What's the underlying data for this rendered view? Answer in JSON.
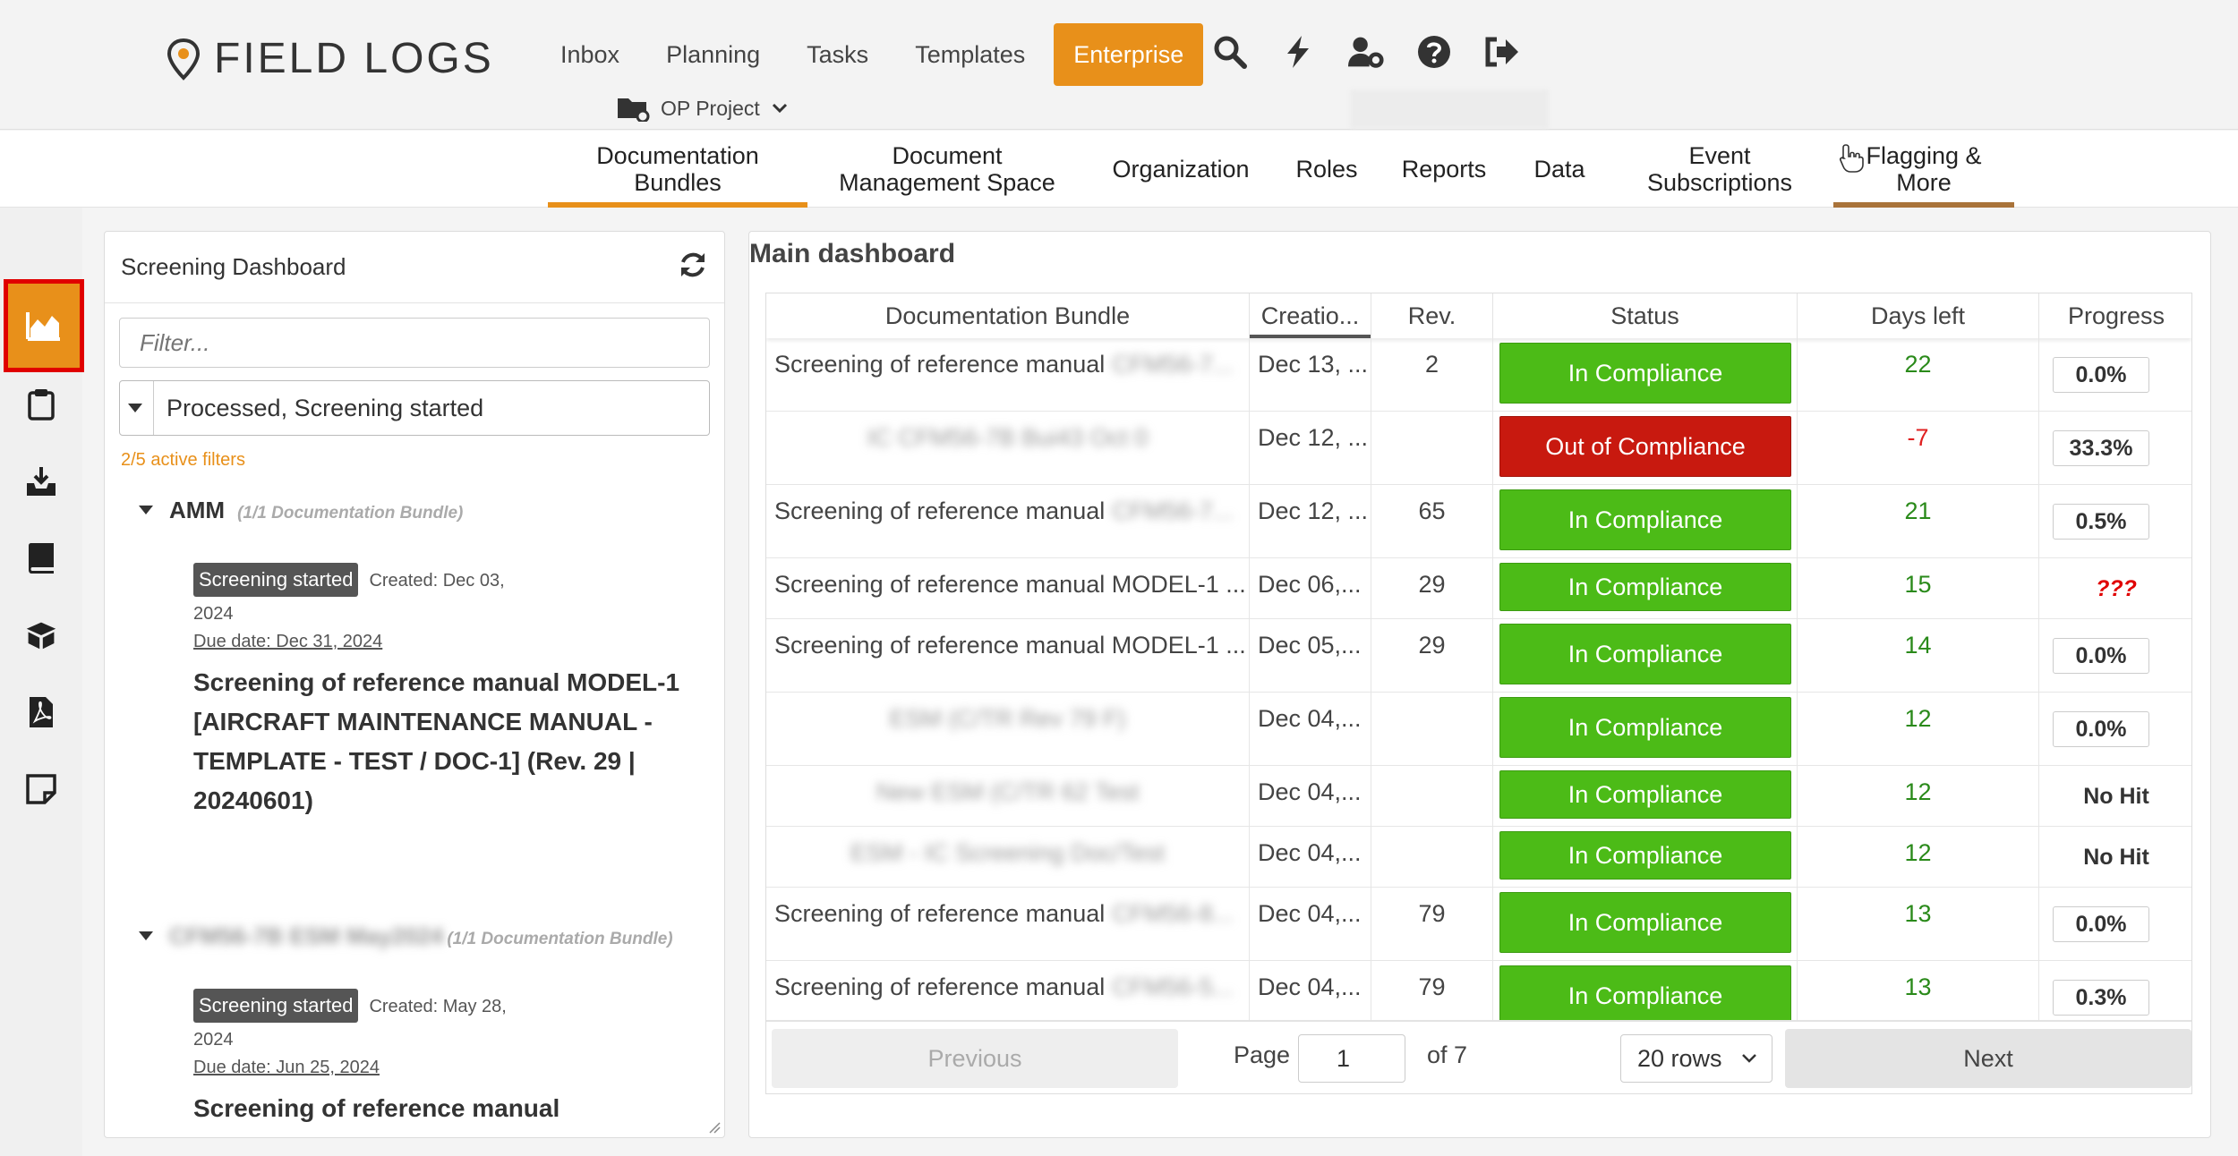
{
  "brand": {
    "name": "FIELD LOGS"
  },
  "topnav": {
    "items": [
      "Inbox",
      "Planning",
      "Tasks",
      "Templates"
    ],
    "active": "Enterprise"
  },
  "topicons": [
    "search-icon",
    "bolt-icon",
    "user-cog-icon",
    "help-icon",
    "logout-icon"
  ],
  "project": {
    "label": "OP Project"
  },
  "subnav": {
    "tabs": [
      {
        "label": "Documentation\nBundles"
      },
      {
        "label": "Document\nManagement Space"
      },
      {
        "label": "Organization"
      },
      {
        "label": "Roles"
      },
      {
        "label": "Reports"
      },
      {
        "label": "Data"
      },
      {
        "label": "Event\nSubscriptions"
      },
      {
        "label": "Flagging &\nMore"
      }
    ]
  },
  "rail": [
    "dashboard-chart-icon",
    "clipboard-icon",
    "inbox-download-icon",
    "book-icon",
    "box-icon",
    "pdf-icon",
    "sticky-note-icon"
  ],
  "left_panel": {
    "title": "Screening Dashboard",
    "filter_placeholder": "Filter...",
    "status_filter": "Processed, Screening started",
    "active_filters": "2/5 active filters",
    "groups": [
      {
        "name": "AMM",
        "count": "(1/1 Documentation Bundle)",
        "card": {
          "badge": "Screening started",
          "created": "Created: Dec 03,",
          "year": "2024",
          "due": "Due date: Dec 31, 2024",
          "title": "Screening of reference manual MODEL-1 [AIRCRAFT MAINTENANCE MANUAL - TEMPLATE - TEST / DOC-1] (Rev. 29 | 20240601)"
        }
      },
      {
        "name": "CFM56-7B ESM May2024",
        "count": "(1/1 Documentation Bundle)",
        "card": {
          "badge": "Screening started",
          "created": "Created: May 28,",
          "year": "2024",
          "due": "Due date: Jun 25, 2024",
          "title": "Screening of reference manual"
        }
      }
    ]
  },
  "main": {
    "title": "Main dashboard",
    "columns": [
      "Documentation Bundle",
      "Creatio...",
      "Rev.",
      "Status",
      "Days left",
      "Progress"
    ],
    "rows": [
      {
        "bundle": "Screening of reference manual",
        "bundle_blur": "CFM56-7...",
        "created": "Dec 13, ...",
        "rev": "2",
        "status": "In Compliance",
        "ok": true,
        "days": "22",
        "progress": "0.0%",
        "progress_style": "box"
      },
      {
        "bundle": "",
        "bundle_blur": "IC CFM56-7B Bui43 Oct 0",
        "created": "Dec 12, ...",
        "rev": "",
        "status": "Out of Compliance",
        "ok": false,
        "days": "-7",
        "progress": "33.3%",
        "progress_style": "box"
      },
      {
        "bundle": "Screening of reference manual",
        "bundle_blur": "CFM56-7...",
        "created": "Dec 12, ...",
        "rev": "65",
        "status": "In Compliance",
        "ok": true,
        "days": "21",
        "progress": "0.5%",
        "progress_style": "box"
      },
      {
        "bundle": "Screening of reference manual MODEL-1 ...",
        "bundle_blur": "",
        "created": "Dec 06,...",
        "rev": "29",
        "status": "In Compliance",
        "ok": true,
        "days": "15",
        "progress": "???",
        "progress_style": "err"
      },
      {
        "bundle": "Screening of reference manual MODEL-1 ...",
        "bundle_blur": "",
        "created": "Dec 05,...",
        "rev": "29",
        "status": "In Compliance",
        "ok": true,
        "days": "14",
        "progress": "0.0%",
        "progress_style": "box"
      },
      {
        "bundle": "",
        "bundle_blur": "ESM (C/TR Rev 79 F)",
        "created": "Dec 04,...",
        "rev": "",
        "status": "In Compliance",
        "ok": true,
        "days": "12",
        "progress": "0.0%",
        "progress_style": "box"
      },
      {
        "bundle": "",
        "bundle_blur": "New ESM (C/TR 62 Test",
        "created": "Dec 04,...",
        "rev": "",
        "status": "In Compliance",
        "ok": true,
        "days": "12",
        "progress": "No Hit",
        "progress_style": "text"
      },
      {
        "bundle": "",
        "bundle_blur": "ESM - IC Screening Doc/Test",
        "created": "Dec 04,...",
        "rev": "",
        "status": "In Compliance",
        "ok": true,
        "days": "12",
        "progress": "No Hit",
        "progress_style": "text"
      },
      {
        "bundle": "Screening of reference manual",
        "bundle_blur": "CFM56-8...",
        "created": "Dec 04,...",
        "rev": "79",
        "status": "In Compliance",
        "ok": true,
        "days": "13",
        "progress": "0.0%",
        "progress_style": "box"
      },
      {
        "bundle": "Screening of reference manual",
        "bundle_blur": "CFM56-5...",
        "created": "Dec 04,...",
        "rev": "79",
        "status": "In Compliance",
        "ok": true,
        "days": "13",
        "progress": "0.3%",
        "progress_style": "box"
      }
    ],
    "pager": {
      "previous": "Previous",
      "page_label": "Page",
      "page_value": "1",
      "of_label": "of 7",
      "rows_option": "20 rows",
      "next": "Next"
    }
  },
  "colors": {
    "accent": "#e8901a",
    "compliance_green": "#4cbb17",
    "noncompliance_red": "#c8190f",
    "highlight_border": "#e00000"
  }
}
